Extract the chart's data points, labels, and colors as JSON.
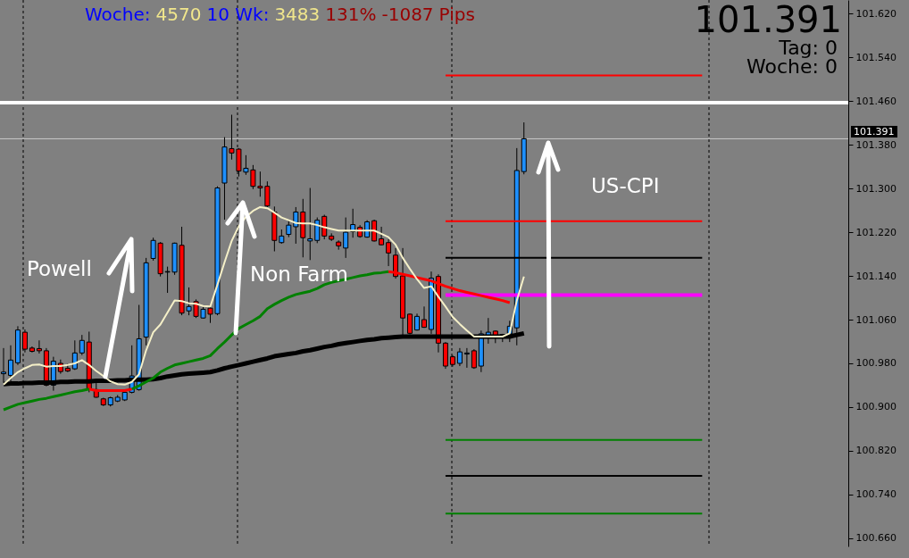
{
  "chart_data": {
    "type": "candlestick",
    "categories": [
      null,
      null,
      null,
      null,
      null,
      null,
      null,
      null,
      null,
      null,
      null,
      null,
      null,
      null,
      null,
      null,
      null,
      null,
      null,
      null,
      null,
      null,
      null,
      null,
      null,
      null,
      null,
      null,
      null,
      null,
      null,
      null,
      null,
      null,
      null,
      null,
      null,
      null,
      null,
      null,
      null,
      null,
      null,
      null,
      null,
      null,
      null,
      null,
      null,
      null,
      null,
      null,
      null,
      null,
      null,
      null,
      null,
      null,
      null,
      null,
      null,
      null,
      null,
      null,
      null,
      null,
      null,
      null,
      null,
      null,
      null,
      null,
      null,
      null,
      null,
      null,
      null,
      null,
      null,
      null,
      null,
      null,
      null,
      null,
      null,
      null,
      null,
      null,
      null,
      null,
      null,
      null,
      null,
      null,
      null,
      null,
      null,
      null,
      null,
      null,
      null,
      null,
      null,
      null,
      null,
      null,
      null,
      null,
      null,
      null,
      null,
      null,
      null,
      null,
      null,
      null,
      null,
      null,
      null
    ],
    "ohlc": [
      [
        100.961,
        101.008,
        100.945,
        100.964
      ],
      [
        100.958,
        101.013,
        100.945,
        100.986
      ],
      [
        100.981,
        101.048,
        100.977,
        101.041
      ],
      [
        101.037,
        101.042,
        101.0,
        101.006
      ],
      [
        101.008,
        101.011,
        101.0,
        101.002
      ],
      [
        101.007,
        101.022,
        100.998,
        101.003
      ],
      [
        101.003,
        101.008,
        100.938,
        100.94
      ],
      [
        100.94,
        100.992,
        100.93,
        100.984
      ],
      [
        100.98,
        100.987,
        100.961,
        100.965
      ],
      [
        100.971,
        100.979,
        100.964,
        100.966
      ],
      [
        100.97,
        101.022,
        100.968,
        100.999
      ],
      [
        100.999,
        101.032,
        100.995,
        101.022
      ],
      [
        101.019,
        101.038,
        100.927,
        100.932
      ],
      [
        100.932,
        100.952,
        100.917,
        100.918
      ],
      [
        100.915,
        100.917,
        100.902,
        100.904
      ],
      [
        100.904,
        100.919,
        100.901,
        100.917
      ],
      [
        100.911,
        100.922,
        100.909,
        100.918
      ],
      [
        100.913,
        100.932,
        100.911,
        100.927
      ],
      [
        100.927,
        101.013,
        100.925,
        100.957
      ],
      [
        100.932,
        101.087,
        100.93,
        101.025
      ],
      [
        101.028,
        101.173,
        101.013,
        101.164
      ],
      [
        101.172,
        101.21,
        101.168,
        101.205
      ],
      [
        101.2,
        101.202,
        101.139,
        101.144
      ],
      [
        101.147,
        101.157,
        101.109,
        101.148
      ],
      [
        101.147,
        101.201,
        101.142,
        101.2
      ],
      [
        101.196,
        101.23,
        101.068,
        101.072
      ],
      [
        101.076,
        101.119,
        101.068,
        101.084
      ],
      [
        101.093,
        101.097,
        101.063,
        101.066
      ],
      [
        101.063,
        101.083,
        101.062,
        101.079
      ],
      [
        101.081,
        101.083,
        101.054,
        101.07
      ],
      [
        101.071,
        101.304,
        101.068,
        101.301
      ],
      [
        101.31,
        101.394,
        101.243,
        101.376
      ],
      [
        101.373,
        101.435,
        101.353,
        101.365
      ],
      [
        101.372,
        101.374,
        101.322,
        101.332
      ],
      [
        101.33,
        101.361,
        101.325,
        101.337
      ],
      [
        101.334,
        101.343,
        101.299,
        101.304
      ],
      [
        101.304,
        101.331,
        101.285,
        101.301
      ],
      [
        101.304,
        101.313,
        101.266,
        101.268
      ],
      [
        101.257,
        101.267,
        101.185,
        101.205
      ],
      [
        101.201,
        101.225,
        101.199,
        101.213
      ],
      [
        101.216,
        101.241,
        101.211,
        101.233
      ],
      [
        101.23,
        101.266,
        101.199,
        101.257
      ],
      [
        101.257,
        101.281,
        101.174,
        101.21
      ],
      [
        101.204,
        101.301,
        101.169,
        101.208
      ],
      [
        101.205,
        101.247,
        101.2,
        101.242
      ],
      [
        101.249,
        101.252,
        101.207,
        101.213
      ],
      [
        101.213,
        101.218,
        101.204,
        101.207
      ],
      [
        101.202,
        101.205,
        101.188,
        101.195
      ],
      [
        101.191,
        101.247,
        101.173,
        101.22
      ],
      [
        101.221,
        101.263,
        101.21,
        101.234
      ],
      [
        101.229,
        101.233,
        101.21,
        101.212
      ],
      [
        101.211,
        101.242,
        101.21,
        101.239
      ],
      [
        101.241,
        101.243,
        101.203,
        101.204
      ],
      [
        101.208,
        101.23,
        101.196,
        101.197
      ],
      [
        101.201,
        101.207,
        101.158,
        101.182
      ],
      [
        101.178,
        101.191,
        101.135,
        101.139
      ],
      [
        101.14,
        101.191,
        101.032,
        101.063
      ],
      [
        101.07,
        101.071,
        101.033,
        101.035
      ],
      [
        101.041,
        101.071,
        101.04,
        101.066
      ],
      [
        101.06,
        101.084,
        101.045,
        101.046
      ],
      [
        101.042,
        101.148,
        101.034,
        101.136
      ],
      [
        101.139,
        101.143,
        101.0,
        101.017
      ],
      [
        101.017,
        101.019,
        100.97,
        100.975
      ],
      [
        100.992,
        100.995,
        100.974,
        100.978
      ],
      [
        100.98,
        101.008,
        100.975,
        101.001
      ],
      [
        100.997,
        101.008,
        100.972,
        100.999
      ],
      [
        101.003,
        101.006,
        100.97,
        100.972
      ],
      [
        100.975,
        101.04,
        100.964,
        101.034
      ],
      [
        101.031,
        101.063,
        101.016,
        101.037
      ],
      [
        101.039,
        101.04,
        101.017,
        101.031
      ],
      [
        101.029,
        101.034,
        101.019,
        101.033
      ],
      [
        101.034,
        101.058,
        101.019,
        101.048
      ],
      [
        101.045,
        101.374,
        101.013,
        101.333
      ],
      [
        101.331,
        101.421,
        101.326,
        101.391
      ],
      null,
      null,
      null,
      null,
      null,
      null,
      null,
      null,
      null,
      null,
      null,
      null,
      null,
      null,
      null,
      null,
      null,
      null,
      null,
      null,
      null,
      null,
      null,
      null,
      null,
      null,
      null,
      null,
      null,
      null,
      null,
      null,
      null,
      null,
      null,
      null,
      null,
      null,
      null,
      null,
      null,
      null,
      null,
      null,
      null
    ],
    "colors": [
      "#1e90ff",
      "#1e90ff",
      "#1e90ff",
      "#ff0000",
      "#ff0000",
      "#ff0000",
      "#ff0000",
      "#1e90ff",
      "#ff0000",
      "#ff0000",
      "#1e90ff",
      "#1e90ff",
      "#ff0000",
      "#ff0000",
      "#ff0000",
      "#1e90ff",
      "#1e90ff",
      "#1e90ff",
      "#1e90ff",
      "#1e90ff",
      "#1e90ff",
      "#1e90ff",
      "#ff0000",
      "#1e90ff",
      "#1e90ff",
      "#ff0000",
      "#1e90ff",
      "#ff0000",
      "#1e90ff",
      "#ff0000",
      "#1e90ff",
      "#1e90ff",
      "#ff0000",
      "#ff0000",
      "#1e90ff",
      "#ff0000",
      "#ff0000",
      "#ff0000",
      "#ff0000",
      "#1e90ff",
      "#1e90ff",
      "#1e90ff",
      "#ff0000",
      "#1e90ff",
      "#1e90ff",
      "#ff0000",
      "#ff0000",
      "#ff0000",
      "#1e90ff",
      "#1e90ff",
      "#ff0000",
      "#1e90ff",
      "#ff0000",
      "#ff0000",
      "#ff0000",
      "#ff0000",
      "#ff0000",
      "#ff0000",
      "#1e90ff",
      "#ff0000",
      "#1e90ff",
      "#ff0000",
      "#ff0000",
      "#ff0000",
      "#1e90ff",
      "#1e90ff",
      "#ff0000",
      "#1e90ff",
      "#1e90ff",
      "#ff0000",
      "#1e90ff",
      "#1e90ff",
      "#1e90ff",
      "#1e90ff",
      null,
      null,
      null,
      null,
      null,
      null,
      null,
      null,
      null,
      null,
      null,
      null,
      null,
      null,
      null,
      null,
      null,
      null,
      null,
      null,
      null,
      null,
      null,
      null,
      null,
      null,
      null,
      null,
      null,
      null,
      null,
      null,
      null,
      null,
      null,
      null,
      null,
      null,
      null,
      null,
      null,
      null,
      null,
      null,
      null
    ],
    "series": [
      {
        "type": "line",
        "color": "#f5f0c8",
        "values": [
          100.941,
          100.953,
          100.964,
          100.971,
          100.977,
          100.978,
          100.974,
          100.975,
          100.975,
          100.977,
          100.98,
          100.986,
          100.977,
          100.966,
          100.957,
          100.947,
          100.942,
          100.941,
          100.946,
          100.96,
          101.004,
          101.037,
          101.051,
          101.073,
          101.095,
          101.094,
          101.09,
          101.089,
          101.085,
          101.084,
          101.124,
          101.165,
          101.204,
          101.231,
          101.248,
          101.259,
          101.266,
          101.264,
          101.256,
          101.247,
          101.242,
          101.237,
          101.236,
          101.236,
          101.233,
          101.229,
          101.226,
          101.223,
          101.223,
          101.223,
          101.223,
          101.223,
          101.223,
          101.217,
          101.211,
          101.197,
          101.173,
          101.153,
          101.134,
          101.118,
          101.121,
          101.102,
          101.084,
          101.065,
          101.052,
          101.04,
          101.029,
          101.029,
          101.029,
          101.029,
          101.029,
          101.035,
          101.095,
          101.139,
          null,
          null,
          null,
          null,
          null,
          null,
          null,
          null,
          null,
          null,
          null,
          null,
          null,
          null,
          null,
          null,
          null,
          null,
          null,
          null,
          null,
          null,
          null,
          null,
          null,
          null,
          null,
          null,
          null,
          null,
          null,
          null,
          null,
          null,
          null,
          null,
          null,
          null,
          null,
          null,
          null,
          null,
          null,
          null,
          null
        ]
      },
      {
        "type": "line",
        "color": "#008000",
        "values": [
          100.895,
          100.9,
          100.905,
          100.908,
          100.911,
          100.914,
          100.916,
          100.919,
          100.922,
          100.925,
          100.928,
          100.93,
          100.933,
          null,
          null,
          null,
          null,
          null,
          100.933,
          100.939,
          100.946,
          100.953,
          100.964,
          100.971,
          100.977,
          100.98,
          100.983,
          100.986,
          100.989,
          100.994,
          101.007,
          101.019,
          101.032,
          101.044,
          101.051,
          101.058,
          101.066,
          101.08,
          101.088,
          101.095,
          101.101,
          101.106,
          101.109,
          101.112,
          101.117,
          101.124,
          101.128,
          101.131,
          101.134,
          101.137,
          101.14,
          101.142,
          101.145,
          101.146,
          101.148,
          null,
          null,
          null,
          null,
          null,
          null,
          null,
          null,
          null,
          null,
          null,
          null,
          null,
          null,
          null,
          null,
          null,
          null,
          null,
          null,
          null,
          null,
          null,
          null,
          null,
          null,
          null,
          null,
          null,
          null,
          null,
          null,
          null,
          null,
          null,
          null,
          null,
          null,
          null,
          null,
          null,
          null,
          null,
          null,
          null,
          null,
          null,
          null,
          null,
          null,
          null,
          null,
          null,
          null,
          null,
          null,
          null,
          null,
          null,
          null,
          null,
          null,
          null,
          null
        ]
      },
      {
        "type": "line",
        "color": "#ff0000",
        "values": [
          null,
          null,
          null,
          null,
          null,
          null,
          null,
          null,
          null,
          null,
          null,
          null,
          100.933,
          100.93,
          100.93,
          100.93,
          100.93,
          100.93,
          100.933,
          null,
          null,
          null,
          null,
          null,
          null,
          null,
          null,
          null,
          null,
          null,
          null,
          null,
          null,
          null,
          null,
          null,
          null,
          null,
          null,
          null,
          null,
          null,
          null,
          null,
          null,
          null,
          null,
          null,
          null,
          null,
          null,
          null,
          null,
          null,
          101.148,
          101.146,
          101.143,
          101.14,
          101.137,
          101.134,
          101.131,
          101.126,
          101.121,
          101.117,
          101.113,
          101.11,
          101.107,
          101.104,
          101.101,
          101.098,
          101.095,
          101.091,
          null,
          null,
          null,
          null,
          null,
          null,
          null,
          null,
          null,
          null,
          null,
          null,
          null,
          null,
          null,
          null,
          null,
          null,
          null,
          null,
          null,
          null,
          null,
          null,
          null,
          null,
          null,
          null,
          null,
          null,
          null,
          null,
          null,
          null,
          null,
          null,
          null,
          null,
          null,
          null,
          null,
          null,
          null,
          null,
          null,
          null,
          null
        ]
      },
      {
        "type": "line",
        "color": "#000000",
        "values": [
          100.942,
          100.943,
          100.943,
          100.944,
          100.944,
          100.945,
          100.945,
          100.945,
          100.946,
          100.946,
          100.947,
          100.947,
          100.947,
          100.948,
          100.948,
          100.948,
          100.949,
          100.949,
          100.95,
          100.95,
          100.95,
          100.951,
          100.953,
          100.956,
          100.958,
          100.96,
          100.961,
          100.962,
          100.963,
          100.964,
          100.967,
          100.971,
          100.974,
          100.977,
          100.98,
          100.983,
          100.986,
          100.989,
          100.993,
          100.995,
          100.997,
          100.999,
          101.002,
          101.004,
          101.007,
          101.01,
          101.012,
          101.015,
          101.017,
          101.019,
          101.021,
          101.023,
          101.024,
          101.026,
          101.027,
          101.028,
          101.029,
          101.029,
          101.029,
          101.029,
          101.029,
          101.029,
          101.029,
          101.029,
          101.029,
          101.029,
          101.029,
          101.029,
          101.029,
          101.029,
          101.029,
          101.029,
          101.032,
          101.035,
          null,
          null,
          null,
          null,
          null,
          null,
          null,
          null,
          null,
          null,
          null,
          null,
          null,
          null,
          null,
          null,
          null,
          null,
          null,
          null,
          null,
          null,
          null,
          null,
          null,
          null,
          null,
          null,
          null,
          null,
          null,
          null,
          null,
          null,
          null,
          null,
          null,
          null,
          null,
          null,
          null,
          null,
          null,
          null,
          null
        ]
      },
      {
        "type": "line",
        "color": "#ff0000",
        "values": [
          null,
          null,
          null,
          null,
          null,
          null,
          null,
          null,
          null,
          null,
          null,
          null,
          null,
          null,
          null,
          null,
          null,
          null,
          null,
          null,
          null,
          null,
          null,
          null,
          null,
          null,
          null,
          null,
          null,
          null,
          null,
          null,
          null,
          null,
          null,
          null,
          null,
          null,
          null,
          null,
          null,
          null,
          null,
          null,
          null,
          null,
          null,
          null,
          null,
          null,
          null,
          null,
          null,
          null,
          null,
          null,
          null,
          null,
          null,
          null,
          null,
          null,
          101.507,
          101.507,
          101.507,
          101.507,
          101.507,
          101.507,
          101.507,
          101.507,
          101.507,
          101.507,
          101.507,
          101.507,
          101.507,
          101.507,
          101.507,
          101.507,
          101.507,
          101.507,
          101.507,
          101.507,
          101.507,
          101.507,
          101.507,
          101.507,
          101.507,
          101.507,
          101.507,
          101.507,
          101.507,
          101.507,
          101.507,
          101.507,
          101.507,
          101.507,
          101.507,
          101.507,
          101.507,
          null,
          null,
          null,
          null,
          null,
          null,
          null,
          null,
          null,
          null,
          null,
          null,
          null,
          null,
          null,
          null,
          null,
          null,
          null,
          null
        ]
      },
      {
        "type": "line",
        "color": "#ff0000",
        "values": [
          null,
          null,
          null,
          null,
          null,
          null,
          null,
          null,
          null,
          null,
          null,
          null,
          null,
          null,
          null,
          null,
          null,
          null,
          null,
          null,
          null,
          null,
          null,
          null,
          null,
          null,
          null,
          null,
          null,
          null,
          null,
          null,
          null,
          null,
          null,
          null,
          null,
          null,
          null,
          null,
          null,
          null,
          null,
          null,
          null,
          null,
          null,
          null,
          null,
          null,
          null,
          null,
          null,
          null,
          null,
          null,
          null,
          null,
          null,
          null,
          null,
          null,
          101.24,
          101.24,
          101.24,
          101.24,
          101.24,
          101.24,
          101.24,
          101.24,
          101.24,
          101.24,
          101.24,
          101.24,
          101.24,
          101.24,
          101.24,
          101.24,
          101.24,
          101.24,
          101.24,
          101.24,
          101.24,
          101.24,
          101.24,
          101.24,
          101.24,
          101.24,
          101.24,
          101.24,
          101.24,
          101.24,
          101.24,
          101.24,
          101.24,
          101.24,
          101.24,
          101.24,
          101.24,
          null,
          null,
          null,
          null,
          null,
          null,
          null,
          null,
          null,
          null,
          null,
          null,
          null,
          null,
          null,
          null,
          null,
          null,
          null,
          null
        ]
      },
      {
        "type": "line",
        "color": "#000000",
        "values": [
          null,
          null,
          null,
          null,
          null,
          null,
          null,
          null,
          null,
          null,
          null,
          null,
          null,
          null,
          null,
          null,
          null,
          null,
          null,
          null,
          null,
          null,
          null,
          null,
          null,
          null,
          null,
          null,
          null,
          null,
          null,
          null,
          null,
          null,
          null,
          null,
          null,
          null,
          null,
          null,
          null,
          null,
          null,
          null,
          null,
          null,
          null,
          null,
          null,
          null,
          null,
          null,
          null,
          null,
          null,
          null,
          null,
          null,
          null,
          null,
          null,
          null,
          101.173,
          101.173,
          101.173,
          101.173,
          101.173,
          101.173,
          101.173,
          101.173,
          101.173,
          101.173,
          101.173,
          101.173,
          101.173,
          101.173,
          101.173,
          101.173,
          101.173,
          101.173,
          101.173,
          101.173,
          101.173,
          101.173,
          101.173,
          101.173,
          101.173,
          101.173,
          101.173,
          101.173,
          101.173,
          101.173,
          101.173,
          101.173,
          101.173,
          101.173,
          101.173,
          101.173,
          101.173,
          null,
          null,
          null,
          null,
          null,
          null,
          null,
          null,
          null,
          null,
          null,
          null,
          null,
          null,
          null,
          null,
          null,
          null,
          null,
          null
        ]
      },
      {
        "type": "line",
        "color": "#ff00ff",
        "values": [
          null,
          null,
          null,
          null,
          null,
          null,
          null,
          null,
          null,
          null,
          null,
          null,
          null,
          null,
          null,
          null,
          null,
          null,
          null,
          null,
          null,
          null,
          null,
          null,
          null,
          null,
          null,
          null,
          null,
          null,
          null,
          null,
          null,
          null,
          null,
          null,
          null,
          null,
          null,
          null,
          null,
          null,
          null,
          null,
          null,
          null,
          null,
          null,
          null,
          null,
          null,
          null,
          null,
          null,
          null,
          null,
          null,
          null,
          null,
          null,
          null,
          null,
          101.105,
          101.105,
          101.105,
          101.105,
          101.105,
          101.105,
          101.105,
          101.105,
          101.105,
          101.105,
          101.105,
          101.105,
          101.105,
          101.105,
          101.105,
          101.105,
          101.105,
          101.105,
          101.105,
          101.105,
          101.105,
          101.105,
          101.105,
          101.105,
          101.105,
          101.105,
          101.105,
          101.105,
          101.105,
          101.105,
          101.105,
          101.105,
          101.105,
          101.105,
          101.105,
          101.105,
          101.105,
          null,
          null,
          null,
          null,
          null,
          null,
          null,
          null,
          null,
          null,
          null,
          null,
          null,
          null,
          null,
          null,
          null,
          null,
          null,
          null
        ]
      },
      {
        "type": "line",
        "color": "#008000",
        "values": [
          null,
          null,
          null,
          null,
          null,
          null,
          null,
          null,
          null,
          null,
          null,
          null,
          null,
          null,
          null,
          null,
          null,
          null,
          null,
          null,
          null,
          null,
          null,
          null,
          null,
          null,
          null,
          null,
          null,
          null,
          null,
          null,
          null,
          null,
          null,
          null,
          null,
          null,
          null,
          null,
          null,
          null,
          null,
          null,
          null,
          null,
          null,
          null,
          null,
          null,
          null,
          null,
          null,
          null,
          null,
          null,
          null,
          null,
          null,
          null,
          null,
          null,
          100.84,
          100.84,
          100.84,
          100.84,
          100.84,
          100.84,
          100.84,
          100.84,
          100.84,
          100.84,
          100.84,
          100.84,
          100.84,
          100.84,
          100.84,
          100.84,
          100.84,
          100.84,
          100.84,
          100.84,
          100.84,
          100.84,
          100.84,
          100.84,
          100.84,
          100.84,
          100.84,
          100.84,
          100.84,
          100.84,
          100.84,
          100.84,
          100.84,
          100.84,
          100.84,
          100.84,
          100.84,
          null,
          null,
          null,
          null,
          null,
          null,
          null,
          null,
          null,
          null,
          null,
          null,
          null,
          null,
          null,
          null,
          null,
          null,
          null,
          null
        ]
      },
      {
        "type": "line",
        "color": "#000000",
        "values": [
          null,
          null,
          null,
          null,
          null,
          null,
          null,
          null,
          null,
          null,
          null,
          null,
          null,
          null,
          null,
          null,
          null,
          null,
          null,
          null,
          null,
          null,
          null,
          null,
          null,
          null,
          null,
          null,
          null,
          null,
          null,
          null,
          null,
          null,
          null,
          null,
          null,
          null,
          null,
          null,
          null,
          null,
          null,
          null,
          null,
          null,
          null,
          null,
          null,
          null,
          null,
          null,
          null,
          null,
          null,
          null,
          null,
          null,
          null,
          null,
          null,
          null,
          100.774,
          100.774,
          100.774,
          100.774,
          100.774,
          100.774,
          100.774,
          100.774,
          100.774,
          100.774,
          100.774,
          100.774,
          100.774,
          100.774,
          100.774,
          100.774,
          100.774,
          100.774,
          100.774,
          100.774,
          100.774,
          100.774,
          100.774,
          100.774,
          100.774,
          100.774,
          100.774,
          100.774,
          100.774,
          100.774,
          100.774,
          100.774,
          100.774,
          100.774,
          100.774,
          100.774,
          100.774,
          null,
          null,
          null,
          null,
          null,
          null,
          null,
          null,
          null,
          null,
          null,
          null,
          null,
          null,
          null,
          null,
          null,
          null,
          null,
          null
        ]
      },
      {
        "type": "line",
        "color": "#008000",
        "values": [
          null,
          null,
          null,
          null,
          null,
          null,
          null,
          null,
          null,
          null,
          null,
          null,
          null,
          null,
          null,
          null,
          null,
          null,
          null,
          null,
          null,
          null,
          null,
          null,
          null,
          null,
          null,
          null,
          null,
          null,
          null,
          null,
          null,
          null,
          null,
          null,
          null,
          null,
          null,
          null,
          null,
          null,
          null,
          null,
          null,
          null,
          null,
          null,
          null,
          null,
          null,
          null,
          null,
          null,
          null,
          null,
          null,
          null,
          null,
          null,
          null,
          null,
          100.705,
          100.705,
          100.705,
          100.705,
          100.705,
          100.705,
          100.705,
          100.705,
          100.705,
          100.705,
          100.705,
          100.705,
          100.705,
          100.705,
          100.705,
          100.705,
          100.705,
          100.705,
          100.705,
          100.705,
          100.705,
          100.705,
          100.705,
          100.705,
          100.705,
          100.705,
          100.705,
          100.705,
          100.705,
          100.705,
          100.705,
          100.705,
          100.705,
          100.705,
          100.705,
          100.705,
          100.705,
          null,
          null,
          null,
          null,
          null,
          null,
          null,
          null,
          null,
          null,
          null,
          null,
          null,
          null,
          null,
          null,
          null,
          null,
          null,
          null
        ]
      }
    ],
    "ref_lines": [
      {
        "axis": "y",
        "value": 101.457,
        "color": "#ffffff"
      },
      {
        "axis": "y",
        "value": 101.391,
        "label": "101.391",
        "color": "#c8c8c8"
      }
    ],
    "ylim": [
      100.645,
      101.645
    ],
    "yticks": [
      {
        "value": 100.66,
        "label": "100.660"
      },
      {
        "value": 100.74,
        "label": "100.740"
      },
      {
        "value": 100.82,
        "label": "100.820"
      },
      {
        "value": 100.9,
        "label": "100.900"
      },
      {
        "value": 100.98,
        "label": "100.980"
      },
      {
        "value": 101.06,
        "label": "101.060"
      },
      {
        "value": 101.14,
        "label": "101.140"
      },
      {
        "value": 101.22,
        "label": "101.220"
      },
      {
        "value": 101.3,
        "label": "101.300"
      },
      {
        "value": 101.38,
        "label": "101.380"
      },
      {
        "value": 101.46,
        "label": "101.460"
      },
      {
        "value": 101.54,
        "label": "101.540"
      },
      {
        "value": 101.62,
        "label": "101.620"
      }
    ],
    "tick_labels": "y",
    "annotations": [
      "Woche:",
      "4570",
      "10 Wk:",
      "3483",
      "131%",
      "-1087",
      "Pips",
      "101.391",
      "Tag: 0",
      "Woche: 0",
      "Powell",
      "Non Farm",
      "US-CPI"
    ]
  }
}
